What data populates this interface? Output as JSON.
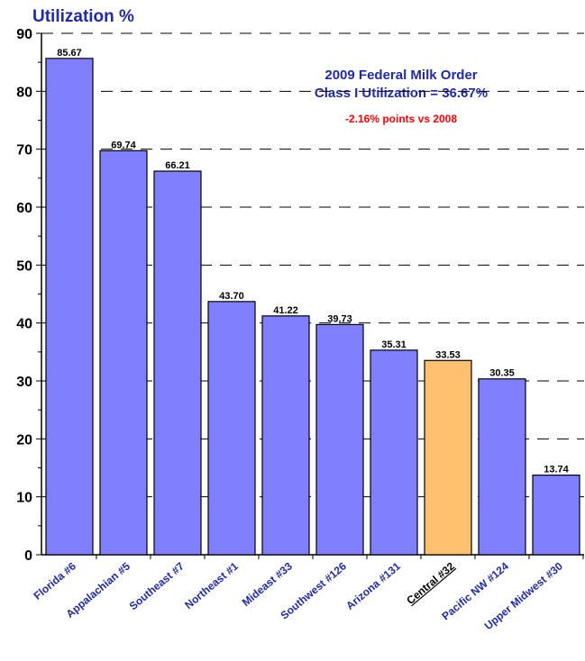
{
  "chart_data": {
    "type": "bar",
    "ylabel": "Utilization %",
    "ylim": [
      0,
      90
    ],
    "yticks": [
      0,
      10,
      20,
      30,
      40,
      50,
      60,
      70,
      80,
      90
    ],
    "grid": "horizontal dashed",
    "categories": [
      "Florida #6",
      "Appalachian #5",
      "Southeast #7",
      "Northeast #1",
      "Mideast #33",
      "Southwest #126",
      "Arizona #131",
      "Central #32",
      "Pacific NW #124",
      "Upper Midwest #30"
    ],
    "values": [
      85.67,
      69.74,
      66.21,
      43.7,
      41.22,
      39.73,
      35.31,
      33.53,
      30.35,
      13.74
    ],
    "value_labels": [
      "85.67",
      "69.74",
      "66.21",
      "43.70",
      "41.22",
      "39.73",
      "35.31",
      "33.53",
      "30.35",
      "13.74"
    ],
    "highlight_index": 7,
    "annotations": {
      "line1": "2009 Federal Milk Order",
      "line2": "Class I Utilization = 36.67%",
      "line3": "-2.16% points vs 2008"
    },
    "colors": {
      "bar": "#8080ff",
      "highlight_bar": "#ffc070",
      "text_blue": "#1f2aa8",
      "text_red": "#ff0000"
    }
  }
}
